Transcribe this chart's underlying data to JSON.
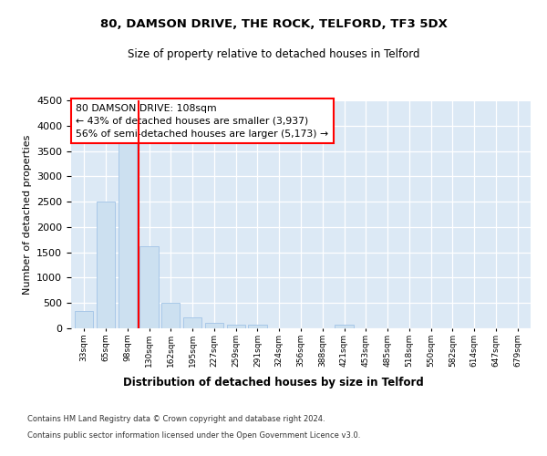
{
  "title1": "80, DAMSON DRIVE, THE ROCK, TELFORD, TF3 5DX",
  "title2": "Size of property relative to detached houses in Telford",
  "xlabel": "Distribution of detached houses by size in Telford",
  "ylabel": "Number of detached properties",
  "categories": [
    "33sqm",
    "65sqm",
    "98sqm",
    "130sqm",
    "162sqm",
    "195sqm",
    "227sqm",
    "259sqm",
    "291sqm",
    "324sqm",
    "356sqm",
    "388sqm",
    "421sqm",
    "453sqm",
    "485sqm",
    "518sqm",
    "550sqm",
    "582sqm",
    "614sqm",
    "647sqm",
    "679sqm"
  ],
  "values": [
    350,
    2500,
    3750,
    1625,
    500,
    225,
    100,
    65,
    65,
    0,
    0,
    0,
    65,
    0,
    0,
    0,
    0,
    0,
    0,
    0,
    0
  ],
  "bar_color": "#cce0f0",
  "bar_edgecolor": "#a8c8e8",
  "vline_color": "red",
  "vline_x": 2.5,
  "annotation_text": "80 DAMSON DRIVE: 108sqm\n← 43% of detached houses are smaller (3,937)\n56% of semi-detached houses are larger (5,173) →",
  "annotation_box_color": "white",
  "annotation_box_edgecolor": "red",
  "ylim": [
    0,
    4500
  ],
  "yticks": [
    0,
    500,
    1000,
    1500,
    2000,
    2500,
    3000,
    3500,
    4000,
    4500
  ],
  "footer1": "Contains HM Land Registry data © Crown copyright and database right 2024.",
  "footer2": "Contains public sector information licensed under the Open Government Licence v3.0.",
  "plot_bg_color": "#dce9f5",
  "fig_bg_color": "#ffffff"
}
